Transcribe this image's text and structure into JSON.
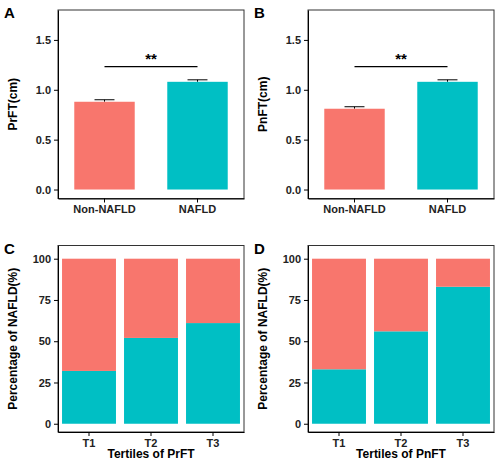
{
  "chart_data": [
    {
      "type": "bar",
      "title": "A",
      "ylabel": "PrFT(cm)",
      "categories": [
        "Non-NAFLD",
        "NAFLD"
      ],
      "values": [
        0.88,
        1.08
      ],
      "errors": [
        0.02,
        0.02
      ],
      "colors": [
        "#F8766D",
        "#00BFC4"
      ],
      "ylim": [
        -0.09,
        1.8
      ],
      "yticks": [
        {
          "value": 0,
          "label": "0.0"
        },
        {
          "value": 0.5,
          "label": "0.5"
        },
        {
          "value": 1,
          "label": "1.0"
        },
        {
          "value": 1.5,
          "label": "1.5"
        }
      ],
      "annotations": [
        {
          "text": "**"
        }
      ]
    },
    {
      "type": "bar",
      "title": "B",
      "ylabel": "PnFT(cm)",
      "categories": [
        "Non-NAFLD",
        "NAFLD"
      ],
      "values": [
        0.81,
        1.08
      ],
      "errors": [
        0.02,
        0.02
      ],
      "colors": [
        "#F8766D",
        "#00BFC4"
      ],
      "ylim": [
        -0.09,
        1.8
      ],
      "yticks": [
        {
          "value": 0,
          "label": "0.0"
        },
        {
          "value": 0.5,
          "label": "0.5"
        },
        {
          "value": 1,
          "label": "1.0"
        },
        {
          "value": 1.5,
          "label": "1.5"
        }
      ],
      "annotations": [
        {
          "text": "**"
        }
      ]
    },
    {
      "type": "bar",
      "stacked": true,
      "title": "C",
      "xlabel": "Tertiles of PrFT",
      "ylabel": "Percentage of NAFLD(%)",
      "categories": [
        "T1",
        "T2",
        "T3"
      ],
      "series": [
        {
          "color": "#00BFC4",
          "values": [
            32,
            52,
            61
          ]
        },
        {
          "color": "#F8766D",
          "values": [
            68,
            48,
            39
          ]
        }
      ],
      "ylim": [
        -5,
        108
      ],
      "yticks": [
        0,
        25,
        50,
        75,
        100
      ]
    },
    {
      "type": "bar",
      "stacked": true,
      "title": "D",
      "xlabel": "Tertiles of PnFT",
      "ylabel": "Percentage of NAFLD(%)",
      "categories": [
        "T1",
        "T2",
        "T3"
      ],
      "series": [
        {
          "color": "#00BFC4",
          "values": [
            33,
            56,
            83
          ]
        },
        {
          "color": "#F8766D",
          "values": [
            67,
            44,
            17
          ]
        }
      ],
      "ylim": [
        -5,
        108
      ],
      "yticks": [
        0,
        25,
        50,
        75,
        100
      ]
    }
  ]
}
